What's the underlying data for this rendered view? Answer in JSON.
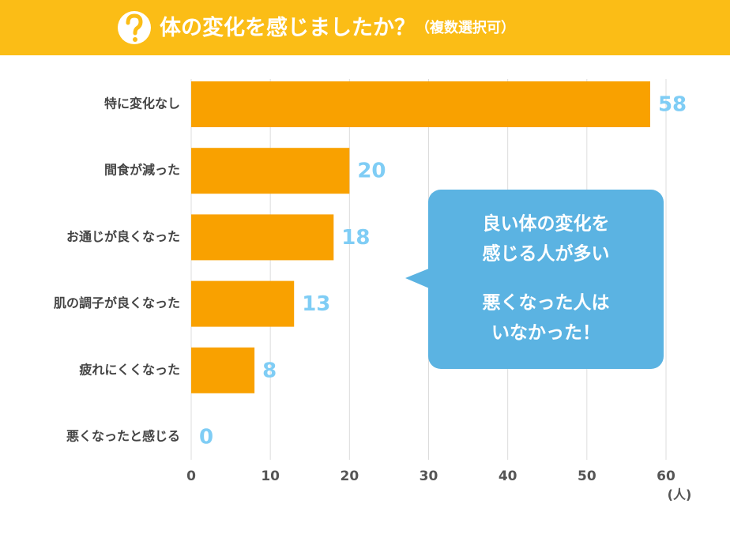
{
  "chart_data": {
    "type": "bar",
    "orientation": "horizontal",
    "title": "体の変化を感じましたか？",
    "subtitle": "（複数選択可）",
    "categories": [
      "特に変化なし",
      "間食が減った",
      "お通じが良くなった",
      "肌の調子が良くなった",
      "疲れにくくなった",
      "悪くなったと感じる"
    ],
    "values": [
      58,
      20,
      18,
      13,
      8,
      0
    ],
    "color": "#f9a100",
    "xlim": [
      0,
      60
    ],
    "xticks": [
      0,
      10,
      20,
      30,
      40,
      50,
      60
    ],
    "x_label": "(人)",
    "grid": true,
    "annotation": [
      "良い体の変化を",
      "感じる人が多い",
      "悪くなった人は",
      "いなかった！"
    ]
  }
}
